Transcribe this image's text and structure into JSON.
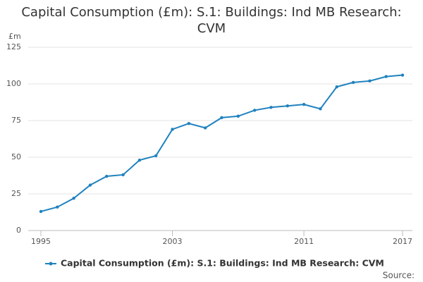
{
  "chart_data": {
    "type": "line",
    "title": "Capital Consumption (£m): S.1: Buildings: Ind MB Research: CVM",
    "y_label": "£m",
    "source": "Source:",
    "x": [
      1995,
      1996,
      1997,
      1998,
      1999,
      2000,
      2001,
      2002,
      2003,
      2004,
      2005,
      2006,
      2007,
      2008,
      2009,
      2010,
      2011,
      2012,
      2013,
      2014,
      2015,
      2016,
      2017
    ],
    "series": [
      {
        "name": "Capital Consumption (£m): S.1: Buildings: Ind MB Research: CVM",
        "color": "#1f82bf",
        "values": [
          13,
          16,
          22,
          31,
          37,
          38,
          48,
          51,
          69,
          73,
          70,
          77,
          78,
          82,
          84,
          85,
          86,
          83,
          98,
          101,
          102,
          105,
          106
        ]
      }
    ],
    "xlim": [
      1995,
      2017
    ],
    "xticks": [
      1995,
      2003,
      2011,
      2017
    ],
    "ylim": [
      0,
      125
    ],
    "yticks": [
      0,
      25,
      50,
      75,
      100,
      125
    ],
    "grid": true
  }
}
